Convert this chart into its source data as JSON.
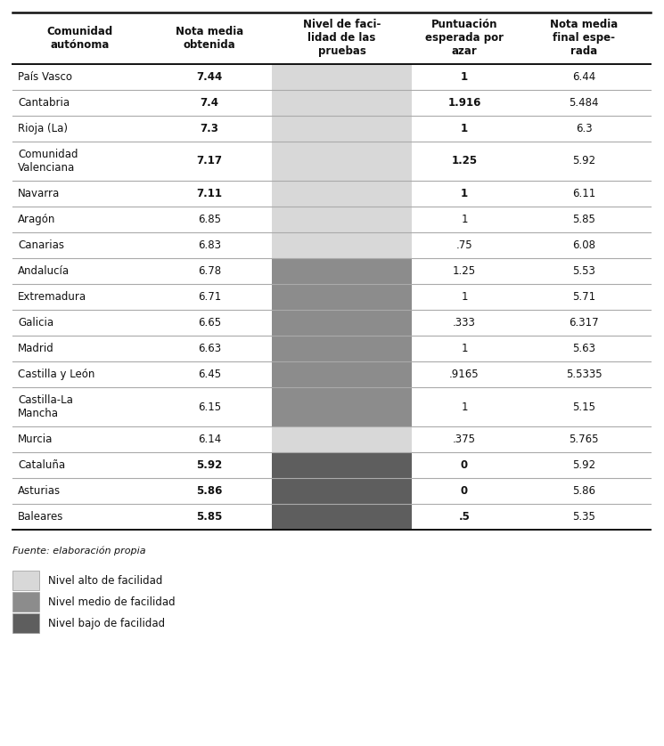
{
  "headers": [
    "Comunidad\nautónoma",
    "Nota media\nobtenida",
    "Nivel de faci-\nlidad de las\npruebas",
    "Puntuación\nesperada por\nazar",
    "Nota media\nfinal espe-\nrada"
  ],
  "rows": [
    {
      "comunidad": "País Vasco",
      "nota_media": "7.44",
      "nivel": "alto",
      "puntuacion": "1",
      "nota_final": "6.44",
      "nota_bold": true,
      "punt_bold": true,
      "two_line": false
    },
    {
      "comunidad": "Cantabria",
      "nota_media": "7.4",
      "nivel": "alto",
      "puntuacion": "1.916",
      "nota_final": "5.484",
      "nota_bold": true,
      "punt_bold": true,
      "two_line": false
    },
    {
      "comunidad": "Rioja (La)",
      "nota_media": "7.3",
      "nivel": "alto",
      "puntuacion": "1",
      "nota_final": "6.3",
      "nota_bold": true,
      "punt_bold": true,
      "two_line": false
    },
    {
      "comunidad": "Comunidad\nValenciana",
      "nota_media": "7.17",
      "nivel": "alto",
      "puntuacion": "1.25",
      "nota_final": "5.92",
      "nota_bold": true,
      "punt_bold": true,
      "two_line": true
    },
    {
      "comunidad": "Navarra",
      "nota_media": "7.11",
      "nivel": "alto",
      "puntuacion": "1",
      "nota_final": "6.11",
      "nota_bold": true,
      "punt_bold": true,
      "two_line": false
    },
    {
      "comunidad": "Aragón",
      "nota_media": "6.85",
      "nivel": "alto",
      "puntuacion": "1",
      "nota_final": "5.85",
      "nota_bold": false,
      "punt_bold": false,
      "two_line": false
    },
    {
      "comunidad": "Canarias",
      "nota_media": "6.83",
      "nivel": "alto",
      "puntuacion": ".75",
      "nota_final": "6.08",
      "nota_bold": false,
      "punt_bold": false,
      "two_line": false
    },
    {
      "comunidad": "Andalucía",
      "nota_media": "6.78",
      "nivel": "medio",
      "puntuacion": "1.25",
      "nota_final": "5.53",
      "nota_bold": false,
      "punt_bold": false,
      "two_line": false
    },
    {
      "comunidad": "Extremadura",
      "nota_media": "6.71",
      "nivel": "medio",
      "puntuacion": "1",
      "nota_final": "5.71",
      "nota_bold": false,
      "punt_bold": false,
      "two_line": false
    },
    {
      "comunidad": "Galicia",
      "nota_media": "6.65",
      "nivel": "medio",
      "puntuacion": ".333",
      "nota_final": "6.317",
      "nota_bold": false,
      "punt_bold": false,
      "two_line": false
    },
    {
      "comunidad": "Madrid",
      "nota_media": "6.63",
      "nivel": "medio",
      "puntuacion": "1",
      "nota_final": "5.63",
      "nota_bold": false,
      "punt_bold": false,
      "two_line": false
    },
    {
      "comunidad": "Castilla y León",
      "nota_media": "6.45",
      "nivel": "medio",
      "puntuacion": ".9165",
      "nota_final": "5.5335",
      "nota_bold": false,
      "punt_bold": false,
      "two_line": false
    },
    {
      "comunidad": "Castilla-La\nMancha",
      "nota_media": "6.15",
      "nivel": "medio",
      "puntuacion": "1",
      "nota_final": "5.15",
      "nota_bold": false,
      "punt_bold": false,
      "two_line": true
    },
    {
      "comunidad": "Murcia",
      "nota_media": "6.14",
      "nivel": "alto",
      "puntuacion": ".375",
      "nota_final": "5.765",
      "nota_bold": false,
      "punt_bold": false,
      "two_line": false
    },
    {
      "comunidad": "Cataluña",
      "nota_media": "5.92",
      "nivel": "bajo",
      "puntuacion": "0",
      "nota_final": "5.92",
      "nota_bold": true,
      "punt_bold": true,
      "two_line": false
    },
    {
      "comunidad": "Asturias",
      "nota_media": "5.86",
      "nivel": "bajo",
      "puntuacion": "0",
      "nota_final": "5.86",
      "nota_bold": true,
      "punt_bold": true,
      "two_line": false
    },
    {
      "comunidad": "Baleares",
      "nota_media": "5.85",
      "nivel": "bajo",
      "puntuacion": ".5",
      "nota_final": "5.35",
      "nota_bold": true,
      "punt_bold": true,
      "two_line": false
    }
  ],
  "nivel_colors": {
    "alto": "#d8d8d8",
    "medio": "#8c8c8c",
    "bajo": "#5e5e5e"
  },
  "bg_color": "#ffffff",
  "fuente_text": "Fuente: elaboración propia",
  "legend_items": [
    {
      "label": "Nivel alto de facilidad",
      "color": "#d8d8d8"
    },
    {
      "label": "Nivel medio de facilidad",
      "color": "#8c8c8c"
    },
    {
      "label": "Nivel bajo de facilidad",
      "color": "#5e5e5e"
    }
  ]
}
